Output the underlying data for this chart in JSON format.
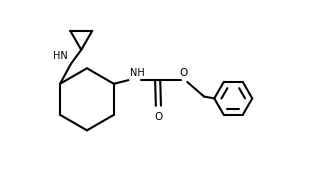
{
  "background_color": "#ffffff",
  "line_color": "#000000",
  "line_width": 1.5,
  "figsize": [
    3.2,
    1.84
  ],
  "dpi": 100,
  "xlim": [
    0.0,
    8.0
  ],
  "ylim": [
    0.0,
    5.0
  ]
}
